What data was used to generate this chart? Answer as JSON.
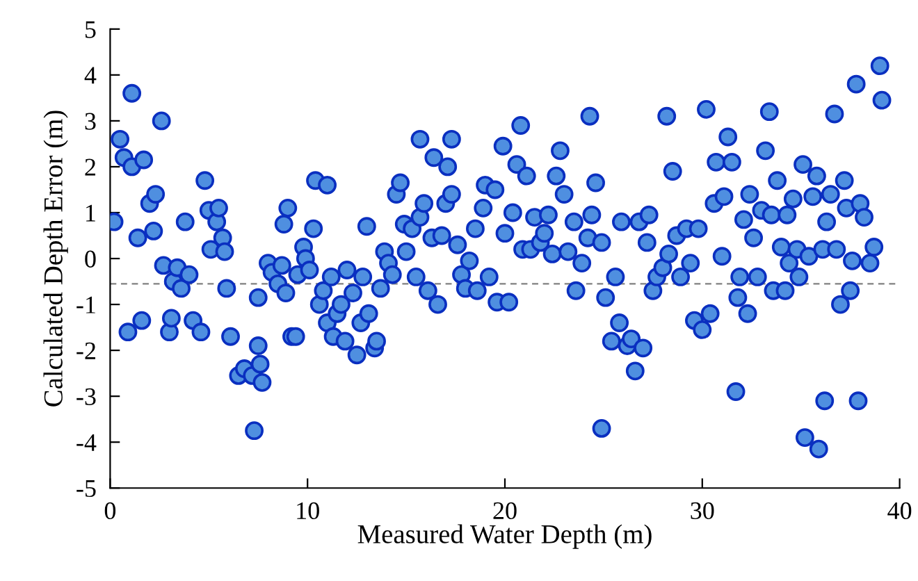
{
  "chart_data": {
    "type": "scatter",
    "xlabel": "Measured Water Depth (m)",
    "ylabel": "Calculated Depth Error (m)",
    "xlim": [
      0,
      40
    ],
    "xticks": [
      0,
      10,
      20,
      30,
      40
    ],
    "ylim": [
      -5,
      5
    ],
    "yticks": [
      -5,
      -4,
      -3,
      -2,
      -1,
      0,
      1,
      2,
      3,
      4,
      5
    ],
    "grid": false,
    "marker": "circle",
    "ref_lines": [
      {
        "axis": "y",
        "value": -0.55,
        "color": "#808080",
        "line_style": "dashed"
      }
    ],
    "series": [
      {
        "color": "#4f8fe0",
        "x": [
          0.2,
          0.5,
          0.7,
          0.9,
          1.1,
          1.1,
          1.4,
          1.6,
          1.7,
          2.0,
          2.2,
          2.3,
          2.6,
          2.7,
          3.0,
          3.1,
          3.2,
          3.4,
          3.6,
          3.8,
          4.0,
          4.2,
          4.6,
          4.8,
          5.0,
          5.1,
          5.4,
          5.5,
          5.7,
          5.8,
          5.9,
          6.1,
          6.5,
          6.8,
          7.2,
          7.3,
          7.5,
          7.6,
          7.7,
          7.5,
          8.0,
          8.2,
          8.5,
          8.7,
          8.8,
          9.0,
          8.9,
          9.2,
          9.4,
          9.5,
          9.8,
          9.9,
          10.1,
          10.3,
          10.4,
          10.6,
          10.8,
          11.0,
          11.0,
          11.2,
          11.3,
          11.5,
          11.7,
          11.9,
          12.0,
          12.3,
          12.5,
          12.7,
          12.8,
          13.0,
          13.1,
          13.4,
          13.5,
          13.7,
          13.9,
          14.1,
          14.3,
          14.5,
          14.7,
          14.9,
          15.0,
          15.3,
          15.5,
          15.7,
          15.7,
          15.9,
          16.1,
          16.3,
          16.4,
          16.6,
          16.8,
          17.0,
          17.1,
          17.3,
          17.3,
          17.6,
          17.8,
          18.0,
          18.2,
          18.5,
          18.6,
          18.9,
          19.0,
          19.2,
          19.5,
          19.6,
          19.9,
          20.0,
          20.2,
          20.4,
          20.6,
          20.8,
          20.9,
          21.1,
          21.3,
          21.5,
          21.8,
          22.0,
          22.2,
          22.4,
          22.6,
          22.8,
          23.0,
          23.2,
          23.5,
          23.6,
          23.9,
          24.2,
          24.3,
          24.4,
          24.6,
          24.9,
          24.9,
          25.1,
          25.4,
          25.6,
          25.8,
          25.9,
          26.2,
          26.4,
          26.6,
          26.8,
          27.0,
          27.2,
          27.3,
          27.5,
          27.7,
          28.0,
          28.2,
          28.3,
          28.5,
          28.7,
          28.9,
          29.2,
          29.4,
          29.6,
          29.8,
          30.0,
          30.2,
          30.4,
          30.6,
          30.7,
          31.0,
          31.1,
          31.3,
          31.5,
          31.7,
          31.8,
          31.9,
          32.1,
          32.3,
          32.4,
          32.6,
          32.8,
          33.0,
          33.2,
          33.4,
          33.5,
          33.6,
          33.8,
          34.0,
          34.2,
          34.3,
          34.4,
          34.6,
          34.8,
          34.9,
          35.1,
          35.2,
          35.4,
          35.6,
          35.8,
          35.9,
          36.1,
          36.2,
          36.3,
          36.5,
          36.7,
          36.8,
          37.0,
          37.2,
          37.3,
          37.5,
          37.6,
          37.8,
          37.9,
          38.0,
          38.2,
          38.5,
          38.7,
          39.0,
          39.1
        ],
        "values": [
          0.8,
          2.6,
          2.2,
          -1.6,
          3.6,
          2.0,
          0.45,
          -1.35,
          2.15,
          1.2,
          0.6,
          1.4,
          3.0,
          -0.15,
          -1.6,
          -1.3,
          -0.5,
          -0.2,
          -0.65,
          0.8,
          -0.35,
          -1.35,
          -1.6,
          1.7,
          1.05,
          0.2,
          0.8,
          1.1,
          0.45,
          0.15,
          -0.65,
          -1.7,
          -2.55,
          -2.4,
          -2.55,
          -3.75,
          -1.9,
          -2.3,
          -2.7,
          -0.85,
          -0.1,
          -0.3,
          -0.55,
          -0.15,
          0.75,
          1.1,
          -0.75,
          -1.7,
          -1.7,
          -0.35,
          0.25,
          0.0,
          -0.25,
          0.65,
          1.7,
          -1.0,
          -0.7,
          1.6,
          -1.4,
          -0.4,
          -1.7,
          -1.2,
          -1.0,
          -1.8,
          -0.25,
          -0.75,
          -2.1,
          -1.4,
          -0.4,
          0.7,
          -1.2,
          -1.95,
          -1.8,
          -0.65,
          0.15,
          -0.1,
          -0.35,
          1.4,
          1.65,
          0.75,
          0.15,
          0.65,
          -0.4,
          0.9,
          2.6,
          1.2,
          -0.7,
          0.45,
          2.2,
          -1.0,
          0.5,
          1.2,
          2.0,
          2.6,
          1.4,
          0.3,
          -0.35,
          -0.65,
          -0.05,
          0.65,
          -0.7,
          1.1,
          1.6,
          -0.4,
          1.5,
          -0.95,
          2.45,
          0.55,
          -0.95,
          1.0,
          2.05,
          2.9,
          0.2,
          1.8,
          0.2,
          0.9,
          0.35,
          0.55,
          0.95,
          0.1,
          1.8,
          2.35,
          1.4,
          0.15,
          0.8,
          -0.7,
          -0.1,
          0.45,
          3.1,
          0.95,
          1.65,
          0.35,
          -3.7,
          -0.85,
          -1.8,
          -0.4,
          -1.4,
          0.8,
          -1.9,
          -1.75,
          -2.45,
          0.8,
          -1.95,
          0.35,
          0.95,
          -0.7,
          -0.4,
          -0.2,
          3.1,
          0.1,
          1.9,
          0.5,
          -0.4,
          0.65,
          -0.1,
          -1.35,
          0.65,
          -1.55,
          3.25,
          -1.2,
          1.2,
          2.1,
          0.05,
          1.35,
          2.65,
          2.1,
          -2.9,
          -0.85,
          -0.4,
          0.85,
          -1.2,
          1.4,
          0.45,
          -0.4,
          1.05,
          2.35,
          3.2,
          0.95,
          -0.7,
          1.7,
          0.25,
          -0.7,
          0.95,
          -0.1,
          1.3,
          0.2,
          -0.4,
          2.05,
          -3.9,
          0.05,
          1.35,
          1.8,
          -4.15,
          0.2,
          -3.1,
          0.8,
          1.4,
          3.15,
          0.2,
          -1.0,
          1.7,
          1.1,
          -0.7,
          -0.05,
          3.8,
          -3.1,
          1.2,
          0.9,
          -0.1,
          0.25,
          4.2,
          3.45
        ]
      }
    ]
  }
}
